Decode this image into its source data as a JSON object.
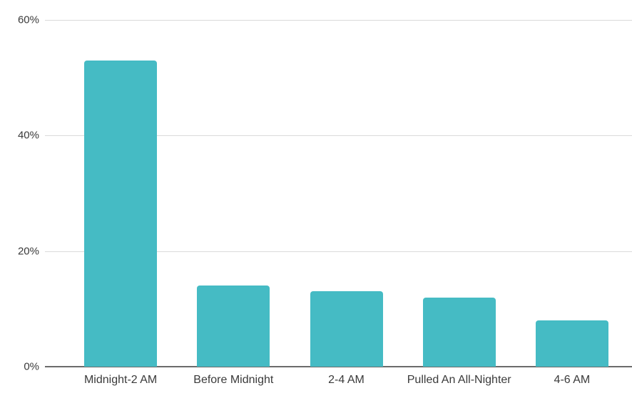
{
  "chart_data": {
    "type": "bar",
    "title": "",
    "categories": [
      "Midnight-2 AM",
      "Before Midnight",
      "2-4 AM",
      "Pulled An All-Nighter",
      "4-6 AM"
    ],
    "values": [
      53,
      14,
      13,
      12,
      8
    ],
    "value_unit": "%",
    "xlabel": "",
    "ylabel": "",
    "ylim": [
      0,
      60
    ],
    "yticks": [
      0,
      20,
      40,
      60
    ],
    "ytick_labels": [
      "0%",
      "20%",
      "40%",
      "60%"
    ],
    "grid": true,
    "legend_position": "none",
    "colors": {
      "bar": "#45bbc4",
      "gridline": "#dadada",
      "axis_line": "#6b6b6b",
      "text": "#3a3a3a",
      "background": "#ffffff"
    }
  }
}
